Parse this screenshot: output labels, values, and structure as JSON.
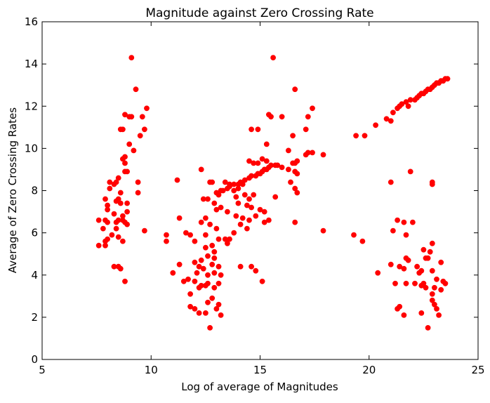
{
  "chart_data": {
    "type": "scatter",
    "title": "Magnitude against Zero Crossing Rate",
    "xlabel": "Log of average of Magnitudes",
    "ylabel": "Average of Zero Crossing Rates",
    "xlim": [
      5,
      25
    ],
    "ylim": [
      0,
      16
    ],
    "xticks": [
      5,
      10,
      15,
      20,
      25
    ],
    "yticks": [
      0,
      2,
      4,
      6,
      8,
      10,
      12,
      14,
      16
    ],
    "grid": false,
    "legend": "none",
    "marker_color": "#ff0000",
    "points": [
      [
        9.1,
        14.3
      ],
      [
        9.3,
        12.8
      ],
      [
        9.8,
        11.9
      ],
      [
        8.8,
        11.6
      ],
      [
        9.0,
        11.5
      ],
      [
        9.1,
        11.5
      ],
      [
        9.6,
        11.5
      ],
      [
        9.7,
        10.9
      ],
      [
        8.6,
        10.9
      ],
      [
        8.7,
        10.9
      ],
      [
        9.5,
        10.6
      ],
      [
        9.0,
        10.2
      ],
      [
        9.2,
        9.9
      ],
      [
        8.8,
        9.6
      ],
      [
        8.7,
        9.5
      ],
      [
        8.8,
        9.3
      ],
      [
        8.9,
        8.9
      ],
      [
        8.8,
        8.9
      ],
      [
        8.5,
        8.6
      ],
      [
        8.1,
        8.4
      ],
      [
        8.3,
        8.3
      ],
      [
        8.4,
        8.4
      ],
      [
        9.4,
        8.4
      ],
      [
        8.1,
        8.1
      ],
      [
        8.6,
        7.9
      ],
      [
        9.4,
        7.9
      ],
      [
        8.5,
        7.6
      ],
      [
        7.9,
        7.6
      ],
      [
        8.4,
        7.5
      ],
      [
        8.6,
        7.4
      ],
      [
        8.9,
        7.4
      ],
      [
        8.0,
        7.3
      ],
      [
        8.0,
        7.1
      ],
      [
        8.9,
        7.0
      ],
      [
        8.3,
        6.9
      ],
      [
        8.7,
        6.8
      ],
      [
        7.6,
        6.6
      ],
      [
        7.9,
        6.6
      ],
      [
        8.0,
        6.5
      ],
      [
        8.4,
        6.5
      ],
      [
        8.5,
        6.6
      ],
      [
        8.7,
        6.6
      ],
      [
        8.8,
        6.5
      ],
      [
        8.9,
        6.4
      ],
      [
        8.4,
        6.2
      ],
      [
        9.7,
        6.1
      ],
      [
        7.8,
        6.2
      ],
      [
        8.2,
        5.9
      ],
      [
        8.5,
        5.8
      ],
      [
        8.0,
        5.7
      ],
      [
        7.9,
        5.6
      ],
      [
        8.7,
        5.6
      ],
      [
        7.6,
        5.4
      ],
      [
        7.9,
        5.4
      ],
      [
        8.3,
        4.4
      ],
      [
        8.5,
        4.4
      ],
      [
        8.6,
        4.3
      ],
      [
        8.8,
        3.7
      ],
      [
        12.3,
        9.0
      ],
      [
        11.2,
        8.5
      ],
      [
        12.7,
        8.4
      ],
      [
        12.8,
        8.4
      ],
      [
        13.0,
        7.9
      ],
      [
        13.1,
        7.8
      ],
      [
        12.6,
        7.6
      ],
      [
        12.4,
        7.6
      ],
      [
        12.9,
        7.4
      ],
      [
        13.2,
        7.2
      ],
      [
        13.5,
        7.0
      ],
      [
        13.0,
        7.1
      ],
      [
        11.3,
        6.7
      ],
      [
        12.5,
        6.7
      ],
      [
        12.3,
        6.5
      ],
      [
        12.7,
        6.4
      ],
      [
        13.0,
        6.2
      ],
      [
        11.6,
        6.0
      ],
      [
        11.8,
        5.9
      ],
      [
        12.5,
        5.9
      ],
      [
        12.0,
        5.6
      ],
      [
        10.7,
        5.9
      ],
      [
        10.7,
        5.6
      ],
      [
        12.8,
        5.4
      ],
      [
        12.5,
        5.3
      ],
      [
        13.1,
        5.7
      ],
      [
        13.4,
        5.7
      ],
      [
        13.5,
        5.5
      ],
      [
        12.9,
        5.1
      ],
      [
        12.6,
        4.9
      ],
      [
        12.9,
        4.8
      ],
      [
        12.3,
        4.7
      ],
      [
        12.0,
        4.6
      ],
      [
        12.8,
        4.5
      ],
      [
        13.1,
        4.4
      ],
      [
        11.3,
        4.5
      ],
      [
        12.2,
        4.4
      ],
      [
        12.4,
        4.3
      ],
      [
        12.9,
        4.1
      ],
      [
        12.1,
        4.1
      ],
      [
        11.0,
        4.1
      ],
      [
        12.6,
        4.0
      ],
      [
        13.2,
        4.0
      ],
      [
        11.7,
        3.8
      ],
      [
        11.5,
        3.7
      ],
      [
        12.0,
        3.7
      ],
      [
        12.6,
        3.6
      ],
      [
        13.1,
        3.6
      ],
      [
        12.3,
        3.5
      ],
      [
        12.5,
        3.5
      ],
      [
        12.2,
        3.4
      ],
      [
        12.9,
        3.4
      ],
      [
        11.8,
        3.1
      ],
      [
        12.8,
        2.9
      ],
      [
        12.6,
        2.7
      ],
      [
        13.1,
        2.6
      ],
      [
        11.8,
        2.5
      ],
      [
        12.0,
        2.4
      ],
      [
        12.5,
        2.2
      ],
      [
        13.0,
        2.4
      ],
      [
        12.2,
        2.2
      ],
      [
        13.2,
        2.1
      ],
      [
        12.7,
        1.5
      ],
      [
        13.4,
        8.4
      ],
      [
        13.6,
        8.3
      ],
      [
        13.8,
        8.3
      ],
      [
        14.0,
        8.3
      ],
      [
        14.1,
        8.4
      ],
      [
        14.3,
        8.5
      ],
      [
        14.5,
        8.6
      ],
      [
        14.6,
        8.7
      ],
      [
        14.8,
        8.7
      ],
      [
        14.9,
        8.8
      ],
      [
        15.0,
        8.8
      ],
      [
        15.1,
        8.9
      ],
      [
        15.2,
        9.0
      ],
      [
        15.3,
        9.0
      ],
      [
        15.4,
        9.1
      ],
      [
        15.5,
        9.2
      ],
      [
        15.7,
        9.2
      ],
      [
        15.8,
        9.2
      ],
      [
        16.0,
        9.1
      ],
      [
        15.1,
        9.5
      ],
      [
        14.9,
        9.3
      ],
      [
        14.5,
        9.4
      ],
      [
        14.7,
        9.3
      ],
      [
        15.3,
        9.4
      ],
      [
        16.3,
        9.0
      ],
      [
        16.5,
        9.3
      ],
      [
        16.6,
        9.3
      ],
      [
        16.7,
        9.4
      ],
      [
        17.1,
        9.7
      ],
      [
        17.2,
        9.8
      ],
      [
        17.4,
        9.8
      ],
      [
        17.9,
        9.7
      ],
      [
        16.6,
        8.9
      ],
      [
        16.7,
        8.8
      ],
      [
        16.4,
        8.4
      ],
      [
        16.6,
        8.1
      ],
      [
        16.7,
        7.9
      ],
      [
        13.2,
        8.0
      ],
      [
        13.3,
        8.0
      ],
      [
        13.5,
        8.1
      ],
      [
        13.6,
        8.2
      ],
      [
        13.8,
        8.0
      ],
      [
        14.0,
        8.1
      ],
      [
        14.2,
        8.3
      ],
      [
        13.9,
        7.7
      ],
      [
        14.3,
        7.8
      ],
      [
        14.5,
        7.6
      ],
      [
        14.7,
        7.8
      ],
      [
        14.0,
        7.4
      ],
      [
        14.4,
        7.3
      ],
      [
        14.6,
        7.2
      ],
      [
        15.0,
        7.1
      ],
      [
        15.2,
        7.0
      ],
      [
        13.9,
        6.8
      ],
      [
        14.2,
        6.7
      ],
      [
        14.5,
        6.6
      ],
      [
        14.8,
        6.8
      ],
      [
        15.4,
        6.6
      ],
      [
        14.1,
        6.4
      ],
      [
        14.4,
        6.2
      ],
      [
        13.8,
        6.0
      ],
      [
        13.6,
        5.7
      ],
      [
        14.6,
        4.4
      ],
      [
        14.8,
        4.2
      ],
      [
        14.1,
        4.4
      ],
      [
        15.1,
        3.7
      ],
      [
        15.5,
        11.5
      ],
      [
        15.4,
        11.6
      ],
      [
        16.0,
        11.5
      ],
      [
        16.5,
        10.6
      ],
      [
        16.3,
        9.9
      ],
      [
        16.6,
        12.8
      ],
      [
        17.2,
        11.5
      ],
      [
        17.4,
        11.9
      ],
      [
        17.1,
        10.9
      ],
      [
        15.6,
        14.3
      ],
      [
        14.6,
        10.9
      ],
      [
        14.9,
        10.9
      ],
      [
        15.3,
        10.2
      ],
      [
        15.7,
        7.7
      ],
      [
        15.2,
        6.5
      ],
      [
        16.6,
        6.5
      ],
      [
        17.9,
        6.1
      ],
      [
        19.4,
        10.6
      ],
      [
        19.8,
        10.6
      ],
      [
        20.3,
        11.1
      ],
      [
        20.8,
        11.4
      ],
      [
        21.0,
        11.3
      ],
      [
        21.1,
        11.7
      ],
      [
        21.3,
        11.9
      ],
      [
        21.4,
        12.0
      ],
      [
        21.5,
        12.1
      ],
      [
        21.7,
        12.2
      ],
      [
        21.8,
        12.0
      ],
      [
        21.9,
        12.3
      ],
      [
        22.1,
        12.3
      ],
      [
        22.2,
        12.4
      ],
      [
        22.3,
        12.5
      ],
      [
        22.4,
        12.6
      ],
      [
        22.5,
        12.6
      ],
      [
        22.6,
        12.7
      ],
      [
        22.7,
        12.8
      ],
      [
        22.8,
        12.8
      ],
      [
        22.9,
        12.9
      ],
      [
        23.0,
        13.0
      ],
      [
        23.1,
        13.1
      ],
      [
        23.2,
        13.1
      ],
      [
        23.3,
        13.2
      ],
      [
        23.4,
        13.2
      ],
      [
        23.5,
        13.3
      ],
      [
        23.6,
        13.3
      ],
      [
        21.0,
        8.4
      ],
      [
        21.9,
        8.9
      ],
      [
        22.9,
        8.4
      ],
      [
        22.9,
        8.3
      ],
      [
        19.3,
        5.9
      ],
      [
        19.7,
        5.6
      ],
      [
        21.1,
        6.1
      ],
      [
        21.3,
        6.6
      ],
      [
        21.6,
        6.5
      ],
      [
        22.0,
        6.5
      ],
      [
        21.7,
        5.9
      ],
      [
        22.8,
        5.1
      ],
      [
        22.9,
        5.5
      ],
      [
        22.5,
        5.2
      ],
      [
        21.4,
        4.4
      ],
      [
        21.7,
        4.8
      ],
      [
        21.8,
        4.7
      ],
      [
        22.2,
        4.4
      ],
      [
        22.4,
        4.2
      ],
      [
        22.6,
        4.8
      ],
      [
        22.7,
        4.8
      ],
      [
        23.3,
        4.6
      ],
      [
        21.0,
        4.5
      ],
      [
        21.6,
        4.3
      ],
      [
        22.3,
        4.1
      ],
      [
        22.9,
        4.2
      ],
      [
        23.1,
        3.8
      ],
      [
        23.4,
        3.7
      ],
      [
        23.5,
        3.6
      ],
      [
        22.5,
        3.6
      ],
      [
        23.0,
        3.4
      ],
      [
        21.7,
        3.6
      ],
      [
        21.2,
        3.6
      ],
      [
        20.4,
        4.1
      ],
      [
        22.1,
        3.6
      ],
      [
        22.4,
        3.5
      ],
      [
        22.6,
        3.4
      ],
      [
        23.3,
        3.3
      ],
      [
        22.9,
        3.1
      ],
      [
        21.3,
        2.4
      ],
      [
        21.4,
        2.5
      ],
      [
        22.9,
        2.8
      ],
      [
        23.0,
        2.6
      ],
      [
        23.1,
        2.4
      ],
      [
        21.6,
        2.1
      ],
      [
        22.4,
        2.2
      ],
      [
        23.2,
        2.1
      ],
      [
        22.7,
        1.5
      ]
    ]
  }
}
